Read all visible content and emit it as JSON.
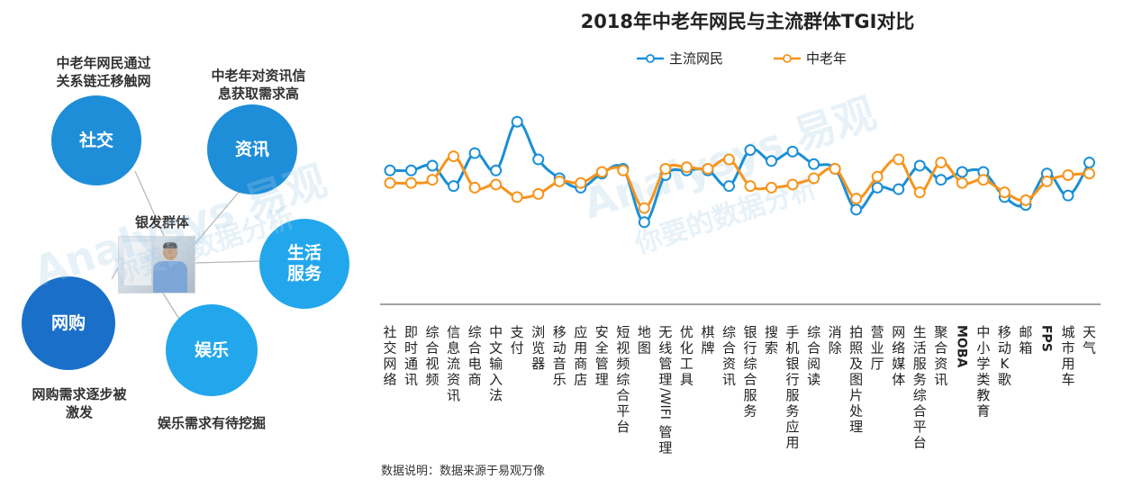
{
  "infographic": {
    "center_label": "银发群体",
    "bubbles": [
      {
        "id": "social",
        "label": "社交",
        "color": "#1e8ed8"
      },
      {
        "id": "info",
        "label": "资讯",
        "color": "#1e8ed8"
      },
      {
        "id": "life",
        "label": "生活\n服务",
        "color": "#22a7ec"
      },
      {
        "id": "shopping",
        "label": "网购",
        "color": "#1a6fc9"
      },
      {
        "id": "entertainment",
        "label": "娱乐",
        "color": "#22a7ec"
      }
    ],
    "notes": {
      "social": "中老年网民通过\n关系链迁移触网",
      "info": "中老年对资讯信\n息获取需求高",
      "shopping": "网购需求逐步被\n激发",
      "entertainment": "娱乐需求有待挖掘"
    },
    "connector_color": "#b5b5b5"
  },
  "chart_data": {
    "type": "line",
    "title": "2018年中老年网民与主流群体TGI对比",
    "categories": [
      "社交网络",
      "即时通讯",
      "综合视频",
      "信息流资讯",
      "综合电商",
      "中文输入法",
      "支付",
      "浏览器",
      "移动音乐",
      "应用商店",
      "安全管理",
      "短视频综合平台",
      "地图",
      "无线管理/WIFI管理",
      "优化工具",
      "棋牌",
      "综合资讯",
      "银行综合服务",
      "搜索",
      "手机银行服务应用",
      "综合阅读",
      "消除",
      "拍照及图片处理",
      "营业厅",
      "网络媒体",
      "生活服务综合平台",
      "聚合资讯",
      "MOBA",
      "中小学类教育",
      "移动K歌",
      "邮箱",
      "FPS",
      "城市用车",
      "天气"
    ],
    "series": [
      {
        "name": "主流网民",
        "color": "#1a8fd6",
        "values": [
          96,
          96,
          99,
          86,
          107,
          96,
          127,
          103,
          91,
          85,
          94,
          97,
          63,
          93,
          96,
          96,
          86,
          109,
          102,
          108,
          100,
          97,
          71,
          85,
          84,
          99,
          90,
          95,
          95,
          79,
          74,
          94,
          80,
          101
        ]
      },
      {
        "name": "中老年",
        "color": "#f7941d",
        "values": [
          88,
          88,
          90,
          105,
          85,
          87,
          79,
          81,
          89,
          88,
          95,
          96,
          72,
          97,
          98,
          97,
          103,
          86,
          85,
          87,
          91,
          97,
          78,
          92,
          103,
          82,
          101,
          88,
          90,
          82,
          77,
          89,
          93,
          94
        ]
      }
    ],
    "grid": false
  },
  "legend": [
    {
      "label": "主流网民",
      "color": "#1a8fd6"
    },
    {
      "label": "中老年",
      "color": "#f7941d"
    }
  ],
  "footnote": "数据说明：数据来源于易观万像",
  "watermarks": [
    "Analysys 易观",
    "你要的数据分析"
  ]
}
